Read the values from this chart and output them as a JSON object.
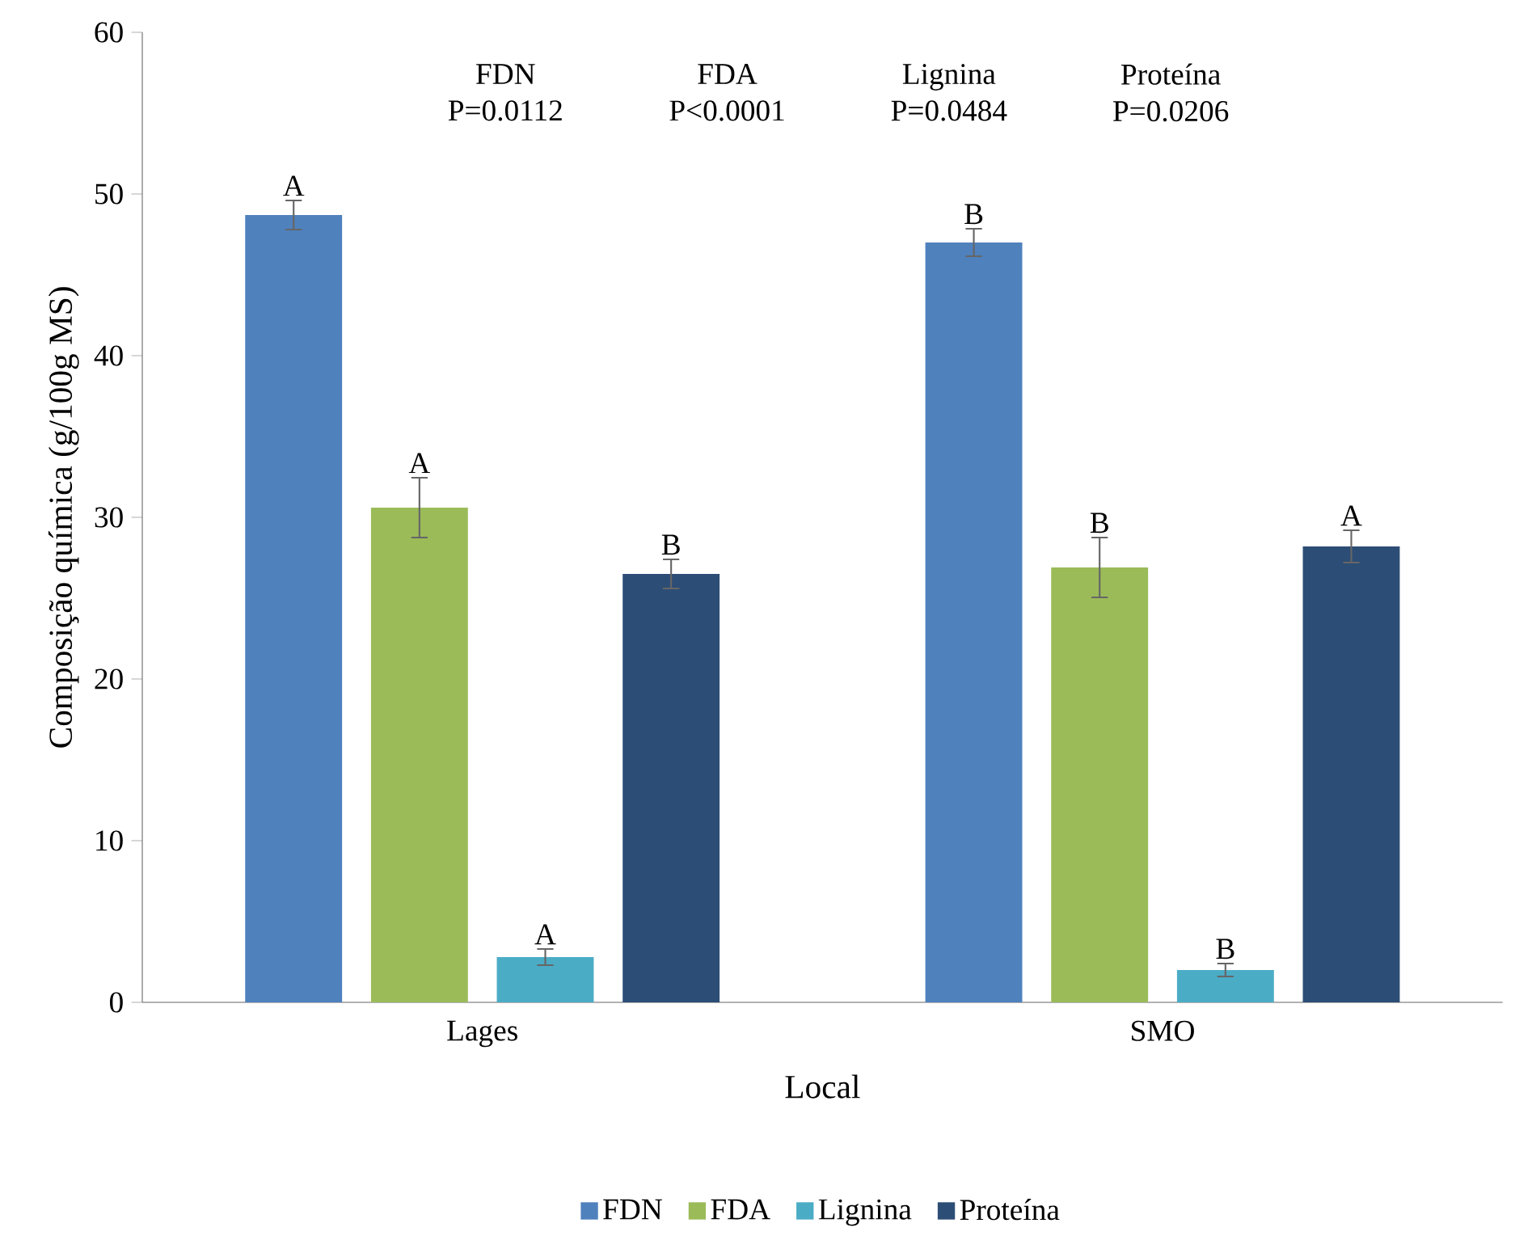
{
  "chart_data": {
    "type": "bar",
    "xlabel": "Local",
    "ylabel": "Composição química (g/100g MS)",
    "categories": [
      "Lages",
      "SMO"
    ],
    "series": [
      {
        "name": "FDN",
        "color": "#4f81bd",
        "values": [
          48.7,
          47.0
        ],
        "errors": [
          0.9,
          0.85
        ],
        "value_labels": [
          "A",
          "B"
        ]
      },
      {
        "name": "FDA",
        "color": "#9bbb59",
        "values": [
          30.6,
          26.9
        ],
        "errors": [
          1.85,
          1.85
        ],
        "value_labels": [
          "A",
          "B"
        ]
      },
      {
        "name": "Lignina",
        "color": "#4bacc6",
        "values": [
          2.8,
          2.0
        ],
        "errors": [
          0.5,
          0.4
        ],
        "value_labels": [
          "A",
          "B"
        ]
      },
      {
        "name": "Proteína",
        "color": "#2c4d75",
        "values": [
          26.5,
          28.2
        ],
        "errors": [
          0.9,
          1.0
        ],
        "value_labels": [
          "B",
          "A"
        ]
      }
    ],
    "ylim": [
      0,
      60
    ],
    "yticks": [
      0,
      10,
      20,
      30,
      40,
      50,
      60
    ],
    "legend": "bottom",
    "grid": false,
    "annotations": [
      "FDN P=0.0112",
      "FDA P<0.0001",
      "Lignina P=0.0484",
      "Proteína P=0.0206"
    ]
  }
}
